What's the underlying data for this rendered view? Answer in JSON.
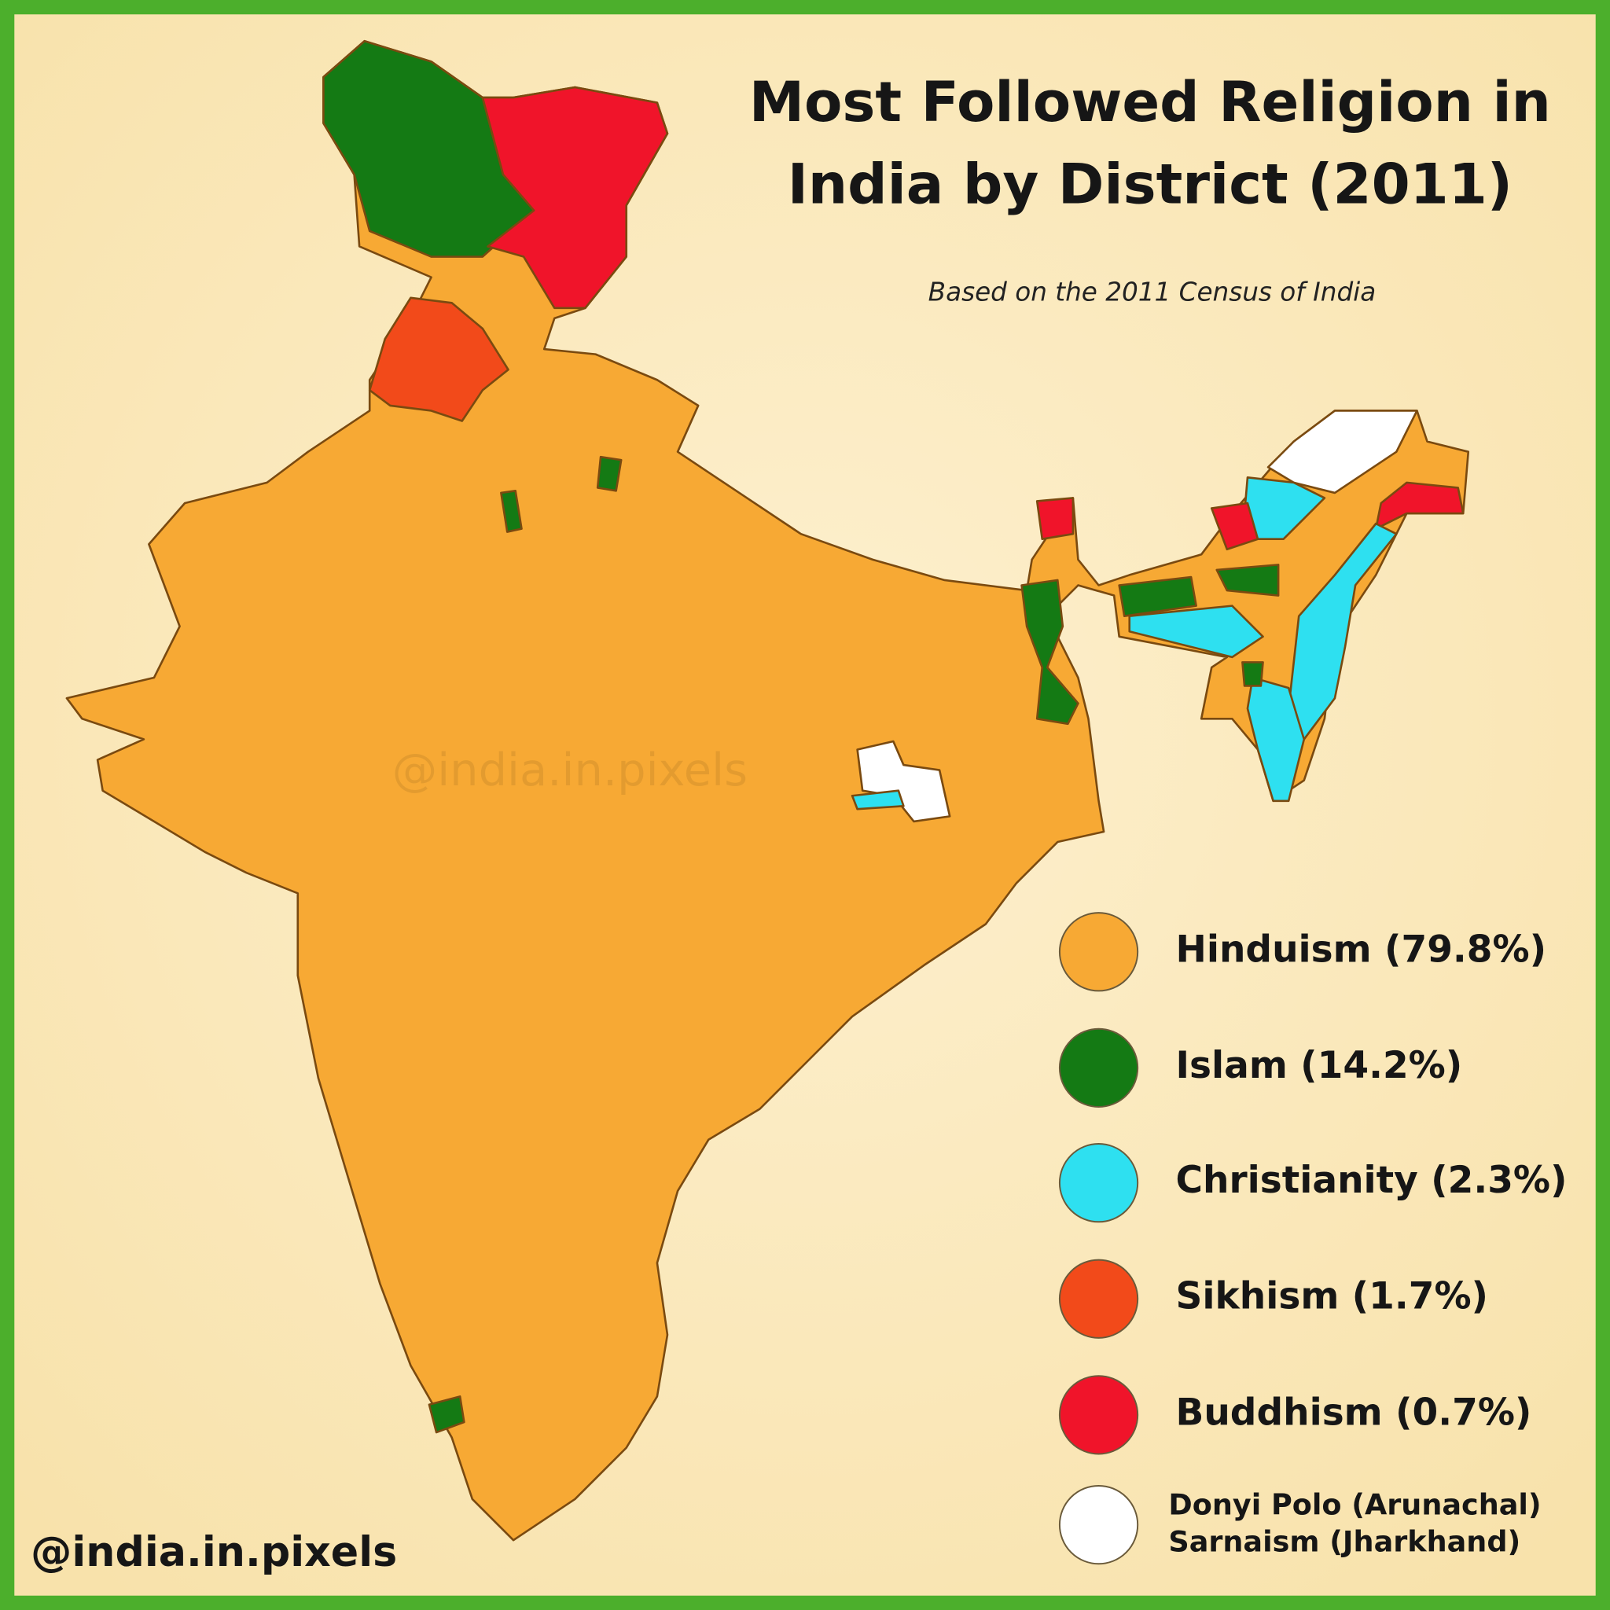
{
  "title": [
    "Most Followed Religion in",
    "India by District (2011)"
  ],
  "subtitle": "Based on the 2011 Census of India",
  "watermark": "@india.in.pixels",
  "credit": "@india.in.pixels",
  "legend": [
    {
      "label": [
        "Hinduism (79.8%)"
      ],
      "color": "#f7a934"
    },
    {
      "label": [
        "Islam (14.2%)"
      ],
      "color": "#147a14"
    },
    {
      "label": [
        "Christianity (2.3%)"
      ],
      "color": "#2ee0f0"
    },
    {
      "label": [
        "Sikhism (1.7%)"
      ],
      "color": "#f24a1a"
    },
    {
      "label": [
        "Buddhism (0.7%)"
      ],
      "color": "#f0142a"
    },
    {
      "label": [
        "Donyi Polo (Arunachal)",
        "Sarnaism (Jharkhand)"
      ],
      "color": "#ffffff"
    }
  ]
}
